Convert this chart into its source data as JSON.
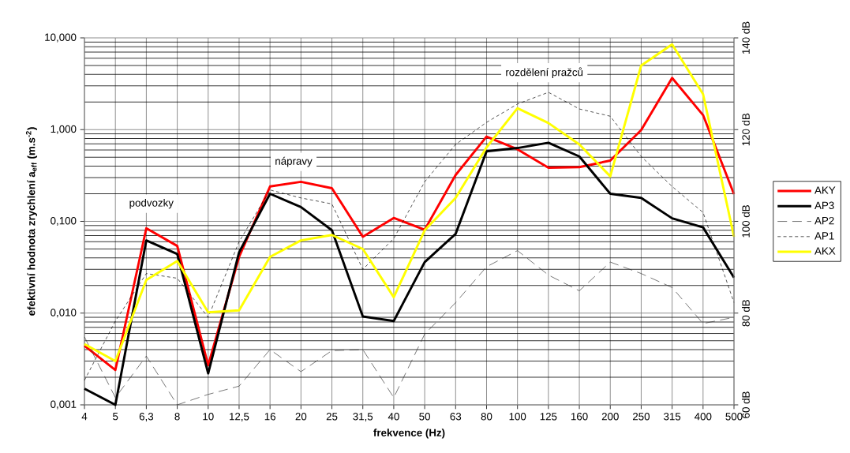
{
  "chart_data": {
    "type": "line",
    "xlabel": "frekvence (Hz)",
    "ylabel": "efektivní hodnota zrychlení a$_{eff}$ (m.s$^{-2}$)",
    "categories": [
      "4",
      "5",
      "6,3",
      "8",
      "10",
      "12,5",
      "16",
      "20",
      "25",
      "31,5",
      "40",
      "50",
      "63",
      "80",
      "100",
      "125",
      "160",
      "200",
      "250",
      "315",
      "400",
      "500"
    ],
    "log": "y",
    "ylim": [
      0.001,
      10
    ],
    "yticks": [
      {
        "value": 0.001,
        "label": "0,001"
      },
      {
        "value": 0.01,
        "label": "0,010"
      },
      {
        "value": 0.1,
        "label": "0,100"
      },
      {
        "value": 1,
        "label": "1,000"
      },
      {
        "value": 10,
        "label": "10,000"
      }
    ],
    "y2lim": [
      60,
      140
    ],
    "y2ticks": [
      {
        "value": 60,
        "label": "60 dB"
      },
      {
        "value": 80,
        "label": "80 dB"
      },
      {
        "value": 100,
        "label": "100 dB"
      },
      {
        "value": 120,
        "label": "120 dB"
      },
      {
        "value": 140,
        "label": "140 dB"
      }
    ],
    "grid": true,
    "legend": "right",
    "annotations": [
      "podvozky",
      "nápravy",
      "rozdělení pražců"
    ],
    "series": [
      {
        "name": "AKY",
        "color": "#ff0000",
        "line_style": "solid",
        "values": [
          0.0044,
          0.0024,
          0.084,
          0.054,
          0.0027,
          0.041,
          0.24,
          0.27,
          0.23,
          0.068,
          0.109,
          0.081,
          0.32,
          0.84,
          0.61,
          0.385,
          0.39,
          0.46,
          0.99,
          3.66,
          1.44,
          0.198
        ]
      },
      {
        "name": "AP3",
        "color": "#000000",
        "line_style": "solid",
        "values": [
          0.0015,
          0.001,
          0.062,
          0.044,
          0.0022,
          0.046,
          0.2,
          0.143,
          0.08,
          0.0092,
          0.0082,
          0.036,
          0.073,
          0.58,
          0.63,
          0.72,
          0.51,
          0.2,
          0.18,
          0.108,
          0.086,
          0.0244
        ]
      },
      {
        "name": "AP2",
        "color": "#333333",
        "line_style": "dashed",
        "values": [
          0.0055,
          0.0012,
          0.0034,
          0.001,
          0.0013,
          0.0016,
          0.004,
          0.0023,
          0.0039,
          0.004,
          0.0012,
          0.0059,
          0.013,
          0.032,
          0.048,
          0.026,
          0.0175,
          0.036,
          0.027,
          0.019,
          0.0077,
          0.009
        ]
      },
      {
        "name": "AP1",
        "color": "#000000",
        "line_style": "dotted",
        "values": [
          0.00185,
          0.0082,
          0.027,
          0.024,
          0.009,
          0.06,
          0.22,
          0.18,
          0.155,
          0.03,
          0.065,
          0.27,
          0.69,
          1.2,
          1.9,
          2.55,
          1.68,
          1.4,
          0.51,
          0.24,
          0.125,
          0.013
        ]
      },
      {
        "name": "AKX",
        "color": "#ffff00",
        "line_style": "solid",
        "values": [
          0.0046,
          0.003,
          0.023,
          0.037,
          0.0102,
          0.0107,
          0.041,
          0.062,
          0.071,
          0.05,
          0.0149,
          0.08,
          0.18,
          0.64,
          1.71,
          1.18,
          0.69,
          0.31,
          5.0,
          8.5,
          2.44,
          0.068
        ]
      }
    ]
  }
}
